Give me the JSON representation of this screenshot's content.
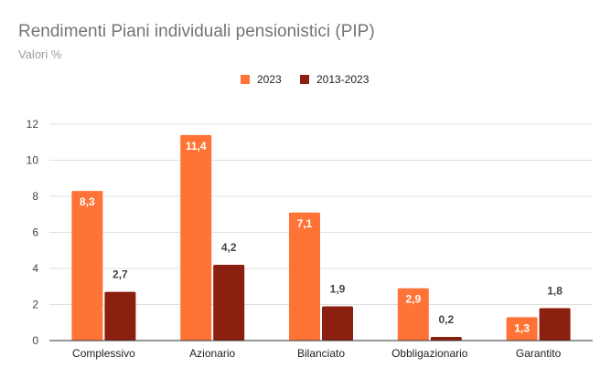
{
  "chart_data": {
    "type": "bar",
    "title": "Rendimenti Piani individuali pensionistici (PIP)",
    "subtitle": "Valori %",
    "categories": [
      "Complessivo",
      "Azionario",
      "Bilanciato",
      "Obbligazionario",
      "Garantito"
    ],
    "series": [
      {
        "name": "2023",
        "color": "#ff7436",
        "values": [
          8.3,
          11.4,
          7.1,
          2.9,
          1.3
        ],
        "labels": [
          "8,3",
          "11,4",
          "7,1",
          "2,9",
          "1,3"
        ]
      },
      {
        "name": "2013-2023",
        "color": "#8b1f10",
        "values": [
          2.7,
          4.2,
          1.9,
          0.2,
          1.8
        ],
        "labels": [
          "2,7",
          "4,2",
          "1,9",
          "0,2",
          "1,8"
        ]
      }
    ],
    "ylim": [
      0,
      12
    ],
    "yticks": [
      0,
      2,
      4,
      6,
      8,
      10,
      12
    ],
    "grid": true,
    "legend_position": "top"
  }
}
